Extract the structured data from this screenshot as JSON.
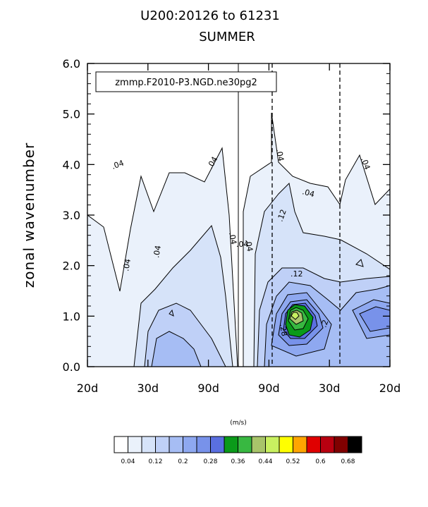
{
  "title": "U200:20126 to 61231",
  "subtitle": "SUMMER",
  "inset_label": "zmmp.F2010-P3.NGD.ne30pg2",
  "chart_data": {
    "type": "heatmap",
    "ylabel": "zonal wavenumber",
    "ylim": [
      0,
      6
    ],
    "yticks": [
      "0.0",
      "1.0",
      "2.0",
      "3.0",
      "4.0",
      "5.0",
      "6.0"
    ],
    "xticks": [
      "20d",
      "30d",
      "90d",
      "90d",
      "30d",
      "20d"
    ],
    "units": "(m/s)",
    "colorbar_labels": [
      "0.04",
      "0.12",
      "0.2",
      "0.28",
      "0.36",
      "0.44",
      "0.52",
      "0.6",
      "0.68"
    ],
    "colorbar_colors": [
      "#ffffff",
      "#eaf1fb",
      "#d6e3f9",
      "#bfd0f7",
      "#a6bdf4",
      "#8ea8f0",
      "#7892ea",
      "#5a6fe0",
      "#0b9a1a",
      "#38b841",
      "#a8c46a",
      "#c8f060",
      "#ffff00",
      "#ffa500",
      "#e00000",
      "#b80010",
      "#800000",
      "#000000"
    ],
    "contour_labels": [
      ".04",
      ".04",
      ".04",
      ".04",
      ".04",
      ".04",
      ".04",
      ".04",
      ".04",
      ".04",
      ".12",
      ".12",
      ".2",
      ".28"
    ]
  }
}
